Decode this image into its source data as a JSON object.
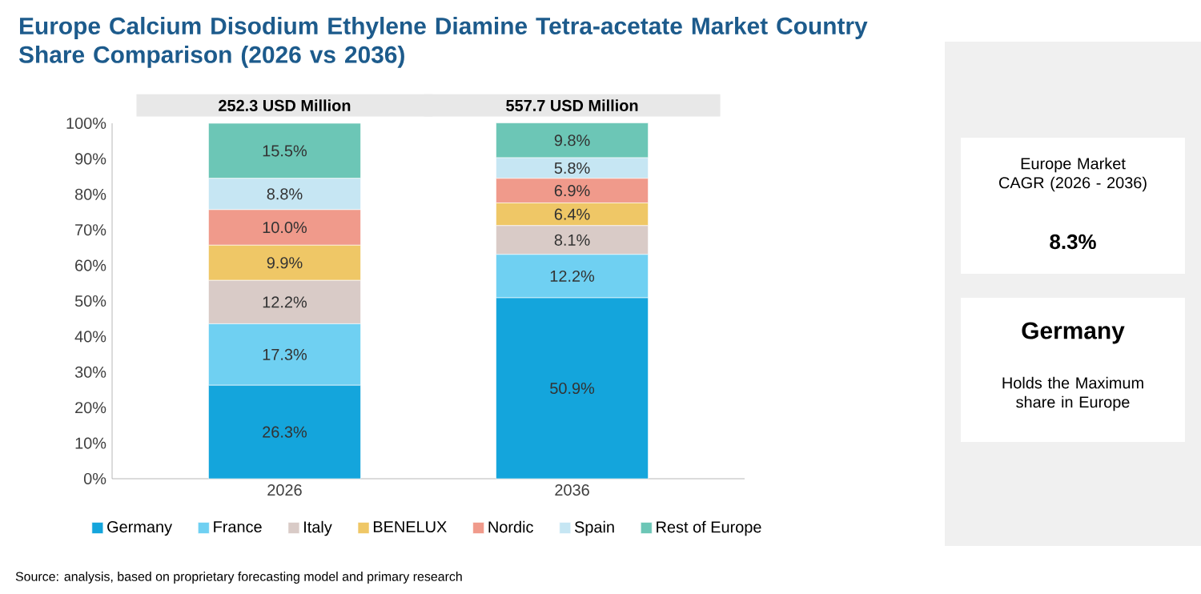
{
  "chart_data": {
    "type": "bar",
    "stacked": true,
    "title": "Europe Calcium Disodium Ethylene Diamine Tetra-acetate Market Country Share Comparison (2026 vs 2036)",
    "categories": [
      "2026",
      "2036"
    ],
    "series": [
      {
        "name": "Germany",
        "color": "#14a5dc",
        "values": [
          26.3,
          50.9
        ],
        "value_labels": [
          "26.3%",
          "50.9%"
        ]
      },
      {
        "name": "France",
        "color": "#6fd0f2",
        "values": [
          17.3,
          12.2
        ],
        "value_labels": [
          "17.3%",
          "12.2%"
        ]
      },
      {
        "name": "Italy",
        "color": "#d9cbc7",
        "values": [
          12.2,
          8.1
        ],
        "value_labels": [
          "12.2%",
          "8.1%"
        ]
      },
      {
        "name": "BENELUX",
        "color": "#efc766",
        "values": [
          9.9,
          6.4
        ],
        "value_labels": [
          "9.9%",
          "6.4%"
        ]
      },
      {
        "name": "Nordic",
        "color": "#f09a8b",
        "values": [
          10.0,
          6.9
        ],
        "value_labels": [
          "10.0%",
          "6.9%"
        ]
      },
      {
        "name": "Spain",
        "color": "#c6e6f3",
        "values": [
          8.8,
          5.8
        ],
        "value_labels": [
          "8.8%",
          "5.8%"
        ]
      },
      {
        "name": "Rest of Europe",
        "color": "#6cc6b6",
        "values": [
          15.5,
          9.8
        ],
        "value_labels": [
          "15.5%",
          "9.8%"
        ]
      }
    ],
    "ylim": [
      0,
      100
    ],
    "yticks": [
      {
        "value": 0,
        "label": "0%"
      },
      {
        "value": 10,
        "label": "10%"
      },
      {
        "value": 20,
        "label": "20%"
      },
      {
        "value": 30,
        "label": "30%"
      },
      {
        "value": 40,
        "label": "40%"
      },
      {
        "value": 50,
        "label": "50%"
      },
      {
        "value": 60,
        "label": "60%"
      },
      {
        "value": 70,
        "label": "70%"
      },
      {
        "value": 80,
        "label": "80%"
      },
      {
        "value": 90,
        "label": "90%"
      },
      {
        "value": 100,
        "label": "100%"
      }
    ],
    "legend": "bottom",
    "annotations": [
      {
        "text": "252.3 USD Million",
        "x": "2026",
        "y": 100
      },
      {
        "text": "557.7 USD Million",
        "x": "2036",
        "y": 100
      },
      "Europe Market CAGR (2026 - 2036)",
      "8.3%",
      "Germany",
      "Holds the Maximum share in Europe",
      "Source: analysis, based on proprietary forecasting model and primary research"
    ]
  }
}
